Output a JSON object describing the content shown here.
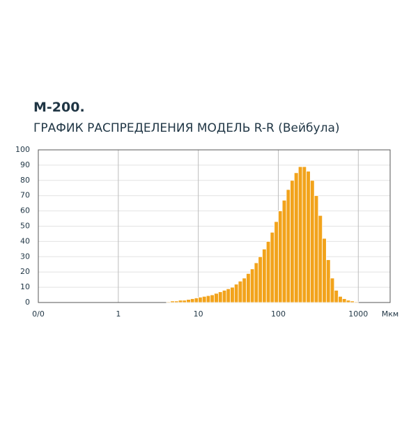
{
  "chart_data": {
    "type": "histogram",
    "title": "М-200.",
    "subtitle": "ГРАФИК РАСПРЕДЕЛЕНИЯ МОДЕЛЬ R-R (Вейбула)",
    "x_label": "Мкм",
    "bins": [
      4.0,
      4.49,
      5.04,
      5.65,
      6.34,
      7.11,
      7.98,
      8.95,
      10,
      11.2,
      12.6,
      14.1,
      15.8,
      17.8,
      20,
      22.4,
      25.1,
      28.2,
      31.6,
      35.5,
      39.8,
      44.7,
      50.1,
      56.2,
      63.1,
      70.8,
      79.4,
      89.1,
      100,
      112,
      126,
      141,
      158,
      178,
      200,
      224,
      251,
      282,
      316,
      355,
      398,
      447,
      501,
      562,
      631,
      708,
      794,
      891,
      1000
    ],
    "values": [
      0.5,
      1,
      1,
      1.5,
      1.5,
      2,
      2.5,
      3,
      3.5,
      4,
      4.5,
      5,
      6,
      7,
      8,
      9,
      10,
      12,
      14,
      16,
      19,
      22,
      26,
      30,
      35,
      40,
      46,
      53,
      60,
      67,
      74,
      80,
      85,
      89,
      89,
      86,
      80,
      70,
      57,
      42,
      28,
      16,
      8,
      4,
      2.5,
      1.5,
      1,
      0.5
    ],
    "color": "#f2a31b",
    "xscale": "log",
    "xlim": [
      0.1,
      2500
    ],
    "xticks": [
      {
        "value": 0.1,
        "label": "0/0"
      },
      1,
      10,
      100,
      1000
    ],
    "ylim": [
      0,
      100
    ],
    "yticks": [
      0,
      10,
      20,
      30,
      40,
      50,
      60,
      70,
      80,
      90,
      100
    ],
    "grid": true
  }
}
